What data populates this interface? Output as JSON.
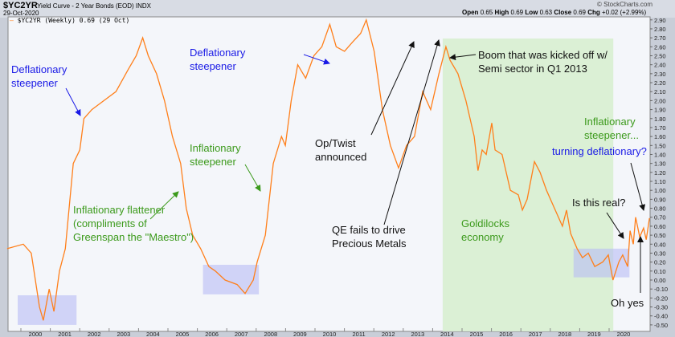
{
  "header": {
    "symbol": "$YC2YR",
    "title": "Yield Curve - 2 Year Bonds (EOD)",
    "exchange": "INDX",
    "date": "29-Oct-2020",
    "copyright": "© StockCharts.com",
    "open_label": "Open",
    "open": "0.65",
    "high_label": "High",
    "high": "0.69",
    "low_label": "Low",
    "low": "0.63",
    "close_label": "Close",
    "close": "0.69",
    "chg_label": "Chg",
    "chg": "+0.02 (+2.99%)"
  },
  "legend": "$YC2YR (Weekly) 0.69 (29 Oct)",
  "colors": {
    "line": "#ff7f1a",
    "band": "#d8f0d0",
    "box": "#b8bdf5"
  },
  "annotations": {
    "defl1": [
      "Deflationary",
      "steepener"
    ],
    "defl2": [
      "Deflationary",
      "steepener"
    ],
    "infl_steep": [
      "Inflationary",
      "steepener"
    ],
    "infl_flat": [
      "Inflationary flattener",
      "(compliments of",
      "Greenspan the \"Maestro\")"
    ],
    "optwist": [
      "Op/Twist",
      "announced"
    ],
    "qe": [
      "QE fails to drive",
      "Precious Metals"
    ],
    "boom": [
      "Boom that was kicked off w/",
      "Semi sector in Q1 2013"
    ],
    "goldilocks": [
      "Goldilocks",
      "economy"
    ],
    "infl_steep2": [
      "Inflationary",
      "steepener..."
    ],
    "turning": "turning deflationary?",
    "real": "Is this real?",
    "ohyes": "Oh yes"
  },
  "chart_data": {
    "type": "line",
    "title": "Yield Curve - 2 Year Bonds (EOD)",
    "series_name": "$YC2YR (Weekly)",
    "xlabel": "",
    "ylabel": "",
    "xlim": [
      1999.0,
      2020.95
    ],
    "ylim": [
      -0.55,
      2.95
    ],
    "x_ticks": [
      2000,
      2001,
      2002,
      2003,
      2004,
      2005,
      2006,
      2007,
      2008,
      2009,
      2010,
      2011,
      2012,
      2013,
      2014,
      2015,
      2016,
      2017,
      2018,
      2019,
      2020
    ],
    "y_ticks": [
      2.9,
      2.8,
      2.7,
      2.6,
      2.5,
      2.4,
      2.3,
      2.2,
      2.1,
      2.0,
      1.9,
      1.8,
      1.7,
      1.6,
      1.5,
      1.4,
      1.3,
      1.2,
      1.1,
      1.0,
      0.9,
      0.8,
      0.7,
      0.6,
      0.5,
      0.4,
      0.3,
      0.2,
      0.1,
      0.0,
      -0.1,
      -0.2,
      -0.3,
      -0.4,
      -0.5
    ],
    "shaded_regions": [
      {
        "x": [
          2013.85,
          2019.65
        ],
        "color": "green"
      }
    ],
    "boxes": [
      {
        "x": [
          1999.4,
          2001.4
        ],
        "y": [
          -0.5,
          -0.17
        ]
      },
      {
        "x": [
          2005.7,
          2007.6
        ],
        "y": [
          -0.16,
          0.17
        ]
      },
      {
        "x": [
          2018.3,
          2020.2
        ],
        "y": [
          0.03,
          0.35
        ]
      }
    ],
    "x": [
      1999.04,
      1999.59,
      1999.86,
      2000.14,
      2000.27,
      2000.47,
      2000.63,
      2000.82,
      2001.02,
      2001.29,
      2001.51,
      2001.65,
      2001.92,
      2002.33,
      2002.74,
      2003.16,
      2003.43,
      2003.65,
      2003.84,
      2004.12,
      2004.39,
      2004.66,
      2004.94,
      2005.13,
      2005.35,
      2005.62,
      2005.9,
      2006.12,
      2006.45,
      2006.86,
      2007.13,
      2007.41,
      2007.54,
      2007.82,
      2008.09,
      2008.37,
      2008.5,
      2008.7,
      2008.92,
      2009.19,
      2009.47,
      2009.74,
      2010.01,
      2010.23,
      2010.51,
      2010.78,
      2011.06,
      2011.25,
      2011.52,
      2011.8,
      2012.07,
      2012.35,
      2012.62,
      2012.89,
      2013.17,
      2013.44,
      2013.72,
      2013.96,
      2014.1,
      2014.37,
      2014.64,
      2014.92,
      2015.05,
      2015.19,
      2015.33,
      2015.52,
      2015.63,
      2015.87,
      2016.15,
      2016.42,
      2016.56,
      2016.72,
      2016.97,
      2017.16,
      2017.38,
      2017.65,
      2017.92,
      2018.06,
      2018.2,
      2018.42,
      2018.6,
      2018.8,
      2019.02,
      2019.29,
      2019.48,
      2019.64,
      2019.84,
      2019.97,
      2020.14,
      2020.22,
      2020.33,
      2020.41,
      2020.55,
      2020.68,
      2020.77,
      2020.88
    ],
    "y": [
      0.35,
      0.4,
      0.3,
      -0.3,
      -0.45,
      -0.1,
      -0.35,
      0.1,
      0.35,
      1.3,
      1.45,
      1.8,
      1.9,
      2.0,
      2.1,
      2.35,
      2.5,
      2.7,
      2.5,
      2.3,
      2.0,
      1.6,
      1.3,
      0.8,
      0.5,
      0.35,
      0.15,
      0.1,
      0.0,
      -0.05,
      -0.15,
      0.0,
      0.2,
      0.5,
      1.3,
      1.6,
      1.5,
      2.0,
      2.4,
      2.25,
      2.5,
      2.6,
      2.85,
      2.6,
      2.55,
      2.65,
      2.75,
      2.9,
      2.55,
      1.9,
      1.5,
      1.25,
      1.5,
      1.6,
      2.1,
      1.9,
      2.3,
      2.6,
      2.45,
      2.3,
      2.0,
      1.6,
      1.22,
      1.45,
      1.4,
      1.75,
      1.45,
      1.4,
      1.0,
      0.95,
      0.78,
      0.9,
      1.32,
      1.2,
      1.0,
      0.8,
      0.6,
      0.78,
      0.52,
      0.35,
      0.25,
      0.3,
      0.15,
      0.2,
      0.28,
      0.0,
      0.2,
      0.28,
      0.15,
      0.55,
      0.4,
      0.7,
      0.48,
      0.58,
      0.45,
      0.69
    ]
  }
}
